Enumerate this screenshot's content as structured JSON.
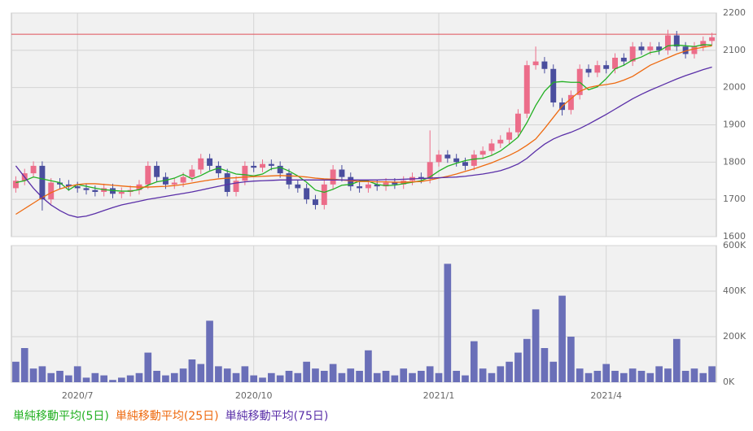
{
  "chart_data": [
    {
      "type": "candlestick",
      "ylim": [
        1600,
        2200
      ],
      "yticks": [
        1600,
        1700,
        1800,
        1900,
        2000,
        2100,
        2200
      ],
      "grid": true,
      "reference_line": 2143,
      "reference_color": "#e0505a",
      "up_color": "#ec6d8a",
      "down_color": "#4a4e9e",
      "open": [
        1730,
        1750,
        1770,
        1790,
        1700,
        1745,
        1740,
        1735,
        1730,
        1725,
        1720,
        1730,
        1715,
        1720,
        1725,
        1740,
        1790,
        1760,
        1740,
        1745,
        1760,
        1780,
        1810,
        1790,
        1770,
        1720,
        1750,
        1790,
        1785,
        1795,
        1790,
        1770,
        1740,
        1730,
        1700,
        1685,
        1740,
        1780,
        1760,
        1735,
        1730,
        1740,
        1735,
        1745,
        1740,
        1750,
        1760,
        1755,
        1800,
        1820,
        1810,
        1800,
        1790,
        1820,
        1830,
        1850,
        1860,
        1880,
        1930,
        2060,
        2070,
        2050,
        1960,
        1940,
        1980,
        2050,
        2040,
        2060,
        2050,
        2080,
        2070,
        2110,
        2100,
        2110,
        2100,
        2140,
        2110,
        2090,
        2110,
        2125
      ],
      "high": [
        1762,
        1782,
        1802,
        1802,
        1757,
        1757,
        1752,
        1747,
        1742,
        1737,
        1742,
        1742,
        1732,
        1737,
        1752,
        1802,
        1802,
        1772,
        1757,
        1772,
        1792,
        1822,
        1822,
        1802,
        1782,
        1762,
        1802,
        1802,
        1807,
        1807,
        1802,
        1782,
        1752,
        1742,
        1712,
        1752,
        1792,
        1792,
        1772,
        1747,
        1752,
        1752,
        1757,
        1757,
        1762,
        1772,
        1772,
        1885,
        1832,
        1832,
        1822,
        1812,
        1832,
        1842,
        1862,
        1872,
        1892,
        1942,
        2072,
        2110,
        2082,
        2062,
        1972,
        1992,
        2062,
        2062,
        2072,
        2072,
        2092,
        2092,
        2122,
        2122,
        2122,
        2122,
        2155,
        2152,
        2122,
        2122,
        2137,
        2147
      ],
      "low": [
        1718,
        1738,
        1758,
        1670,
        1688,
        1728,
        1723,
        1718,
        1713,
        1708,
        1708,
        1703,
        1703,
        1708,
        1713,
        1728,
        1748,
        1728,
        1728,
        1733,
        1748,
        1768,
        1778,
        1758,
        1708,
        1708,
        1738,
        1773,
        1773,
        1778,
        1758,
        1728,
        1718,
        1688,
        1673,
        1673,
        1728,
        1748,
        1723,
        1718,
        1718,
        1723,
        1723,
        1728,
        1728,
        1738,
        1743,
        1743,
        1788,
        1798,
        1788,
        1778,
        1778,
        1808,
        1818,
        1838,
        1848,
        1868,
        1918,
        2048,
        2038,
        1948,
        1925,
        1928,
        1968,
        2028,
        2028,
        2038,
        2038,
        2058,
        2058,
        2088,
        2088,
        2088,
        2088,
        2098,
        2078,
        2078,
        2098,
        2113
      ],
      "close": [
        1750,
        1770,
        1790,
        1700,
        1745,
        1740,
        1735,
        1730,
        1725,
        1720,
        1730,
        1715,
        1720,
        1725,
        1740,
        1790,
        1760,
        1740,
        1745,
        1760,
        1780,
        1810,
        1790,
        1770,
        1720,
        1750,
        1790,
        1785,
        1795,
        1790,
        1770,
        1740,
        1730,
        1700,
        1685,
        1740,
        1780,
        1760,
        1735,
        1730,
        1740,
        1735,
        1745,
        1740,
        1750,
        1760,
        1755,
        1800,
        1820,
        1810,
        1800,
        1790,
        1820,
        1830,
        1850,
        1860,
        1880,
        1930,
        2060,
        2070,
        2050,
        1960,
        1940,
        1980,
        2050,
        2040,
        2060,
        2050,
        2080,
        2070,
        2110,
        2100,
        2110,
        2100,
        2140,
        2110,
        2090,
        2110,
        2125,
        2135
      ],
      "series": [
        {
          "name": "単純移動平均(5日)",
          "color": "#22b022",
          "values": [
            1745,
            1750,
            1760,
            1755,
            1750,
            1745,
            1725,
            1740,
            1735,
            1730,
            1726,
            1724,
            1722,
            1722,
            1726,
            1738,
            1747,
            1751,
            1757,
            1767,
            1755,
            1764,
            1776,
            1784,
            1776,
            1768,
            1766,
            1763,
            1768,
            1782,
            1786,
            1776,
            1763,
            1746,
            1725,
            1719,
            1727,
            1738,
            1740,
            1749,
            1749,
            1740,
            1737,
            1738,
            1742,
            1746,
            1750,
            1760,
            1776,
            1789,
            1797,
            1804,
            1808,
            1810,
            1818,
            1830,
            1848,
            1867,
            1906,
            1952,
            1990,
            2014,
            2016,
            2014,
            2014,
            1994,
            2002,
            2024,
            2050,
            2060,
            2074,
            2082,
            2094,
            2098,
            2112,
            2114,
            2112,
            2110,
            2115,
            2114
          ]
        },
        {
          "name": "単純移動平均(25日)",
          "color": "#ee6a10",
          "values": [
            1660,
            1675,
            1690,
            1705,
            1718,
            1728,
            1735,
            1740,
            1742,
            1742,
            1740,
            1738,
            1736,
            1734,
            1733,
            1733,
            1734,
            1735,
            1737,
            1740,
            1744,
            1748,
            1752,
            1755,
            1757,
            1758,
            1760,
            1761,
            1762,
            1763,
            1764,
            1763,
            1762,
            1760,
            1757,
            1755,
            1754,
            1752,
            1750,
            1748,
            1748,
            1747,
            1747,
            1746,
            1746,
            1747,
            1748,
            1752,
            1757,
            1762,
            1768,
            1775,
            1782,
            1790,
            1798,
            1808,
            1818,
            1830,
            1845,
            1862,
            1890,
            1920,
            1950,
            1970,
            1990,
            2000,
            2005,
            2008,
            2012,
            2020,
            2030,
            2045,
            2060,
            2070,
            2080,
            2090,
            2098,
            2104,
            2108,
            2112
          ]
        },
        {
          "name": "単純移動平均(75日)",
          "color": "#5a2fa8",
          "values": [
            1790,
            1760,
            1730,
            1705,
            1685,
            1670,
            1658,
            1652,
            1655,
            1662,
            1670,
            1678,
            1685,
            1690,
            1695,
            1700,
            1704,
            1708,
            1712,
            1716,
            1720,
            1725,
            1730,
            1735,
            1740,
            1744,
            1747,
            1749,
            1750,
            1751,
            1752,
            1752,
            1752,
            1752,
            1752,
            1752,
            1752,
            1752,
            1752,
            1752,
            1752,
            1752,
            1753,
            1753,
            1754,
            1755,
            1756,
            1757,
            1758,
            1759,
            1760,
            1762,
            1765,
            1768,
            1772,
            1777,
            1785,
            1795,
            1810,
            1830,
            1848,
            1862,
            1872,
            1880,
            1890,
            1902,
            1915,
            1928,
            1942,
            1956,
            1970,
            1982,
            1993,
            2003,
            2013,
            2023,
            2032,
            2040,
            2048,
            2055
          ]
        }
      ]
    },
    {
      "type": "bar",
      "color": "#6a6fb8",
      "ylim": [
        0,
        600000
      ],
      "yticks": [
        {
          "value": 0,
          "label": "0K"
        },
        {
          "value": 200000,
          "label": "200K"
        },
        {
          "value": 400000,
          "label": "400K"
        },
        {
          "value": 600000,
          "label": "600K"
        }
      ],
      "grid": true,
      "categories": [
        null,
        null,
        null,
        null,
        null,
        null,
        null,
        "2020/7",
        null,
        null,
        null,
        null,
        null,
        null,
        null,
        null,
        null,
        null,
        null,
        null,
        null,
        null,
        null,
        null,
        null,
        null,
        null,
        "2020/10",
        null,
        null,
        null,
        null,
        null,
        null,
        null,
        null,
        null,
        null,
        null,
        null,
        null,
        null,
        null,
        null,
        null,
        null,
        null,
        null,
        "2021/1",
        null,
        null,
        null,
        null,
        null,
        null,
        null,
        null,
        null,
        null,
        null,
        null,
        null,
        null,
        null,
        null,
        null,
        null,
        "2021/4",
        null,
        null,
        null,
        null,
        null,
        null,
        null,
        null,
        null,
        null,
        null,
        null
      ],
      "values": [
        90000,
        150000,
        60000,
        70000,
        40000,
        50000,
        30000,
        70000,
        20000,
        40000,
        30000,
        10000,
        20000,
        30000,
        40000,
        130000,
        50000,
        30000,
        40000,
        60000,
        100000,
        80000,
        270000,
        70000,
        60000,
        40000,
        70000,
        30000,
        20000,
        40000,
        30000,
        50000,
        40000,
        90000,
        60000,
        50000,
        80000,
        40000,
        60000,
        50000,
        140000,
        40000,
        50000,
        30000,
        60000,
        40000,
        50000,
        70000,
        40000,
        520000,
        50000,
        30000,
        180000,
        60000,
        40000,
        70000,
        90000,
        130000,
        190000,
        320000,
        150000,
        90000,
        380000,
        200000,
        60000,
        40000,
        50000,
        80000,
        50000,
        40000,
        60000,
        50000,
        40000,
        70000,
        60000,
        190000,
        50000,
        60000,
        40000,
        70000
      ]
    }
  ]
}
